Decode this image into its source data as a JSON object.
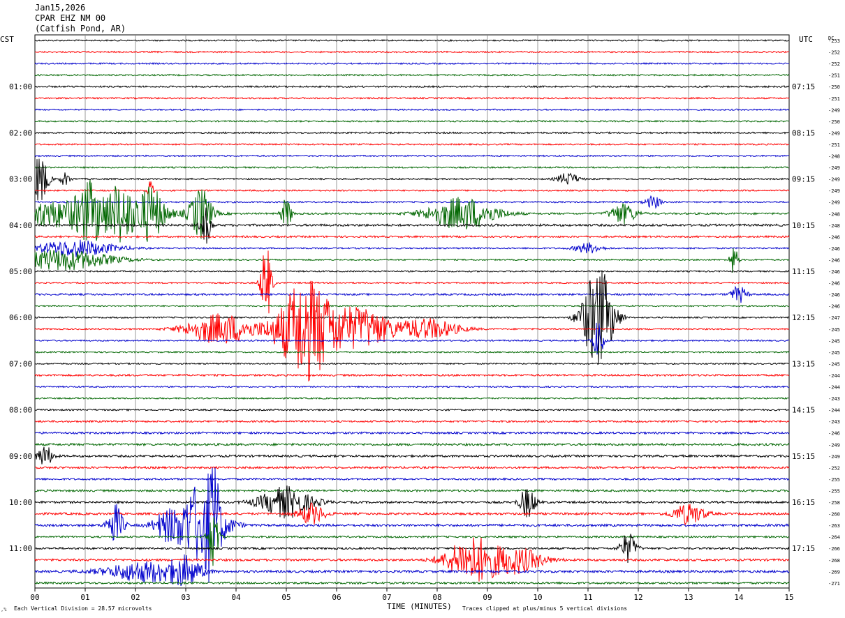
{
  "header": {
    "date": "Jan15,2026",
    "station": "CPAR EHZ NM 00",
    "location": "(Catfish Pond, AR)"
  },
  "axes": {
    "left_label": "CST",
    "right_label": "UTC",
    "dc_label": "DC",
    "xlabel": "TIME (MINUTES)"
  },
  "footer": {
    "scale_note": "Each Vertical Division =   28.57 microvolts",
    "clip_note": "Traces clipped at plus/minus 5 vertical divisions"
  },
  "colors": {
    "trace_cycle": [
      "#000000",
      "#ff0000",
      "#0000cc",
      "#006600"
    ],
    "grid": "#808080"
  },
  "chart_data": {
    "type": "line",
    "title": "",
    "xlabel": "TIME (MINUTES)",
    "xlim": [
      0,
      15
    ],
    "x_ticks": [
      "00",
      "01",
      "02",
      "03",
      "04",
      "05",
      "06",
      "07",
      "08",
      "09",
      "10",
      "11",
      "12",
      "13",
      "14",
      "15"
    ],
    "rows_per_hour": 4,
    "row_count": 48,
    "cst_hour_labels": [
      "01:00",
      "02:00",
      "03:00",
      "04:00",
      "05:00",
      "06:00",
      "07:00",
      "08:00",
      "09:00",
      "10:00",
      "11:00"
    ],
    "utc_hour_labels": [
      "07:15",
      "08:15",
      "09:15",
      "10:15",
      "11:15",
      "12:15",
      "13:15",
      "14:15",
      "15:15",
      "16:15",
      "17:15"
    ],
    "dc_offsets": [
      "-253",
      "-252",
      "-252",
      "-251",
      "-250",
      "-251",
      "-249",
      "-250",
      "-249",
      "-251",
      "-248",
      "-249",
      "-249",
      "-249",
      "-249",
      "-248",
      "-248",
      "-246",
      "-246",
      "-246",
      "-246",
      "-246",
      "-246",
      "-246",
      "-247",
      "-245",
      "-245",
      "-245",
      "-245",
      "-244",
      "-244",
      "-243",
      "-244",
      "-243",
      "-246",
      "-249",
      "-249",
      "-252",
      "-255",
      "-255",
      "-258",
      "-260",
      "-263",
      "-264",
      "-266",
      "-268",
      "-269",
      "-271"
    ],
    "noise_level": [
      0.8,
      0.8,
      0.8,
      0.8,
      0.9,
      0.8,
      0.8,
      0.8,
      0.9,
      0.8,
      0.8,
      0.8,
      0.8,
      0.8,
      0.8,
      1.0,
      1.2,
      1.0,
      0.8,
      0.8,
      0.8,
      0.8,
      1.0,
      0.8,
      0.8,
      0.8,
      0.8,
      0.8,
      0.8,
      1.0,
      0.8,
      0.8,
      0.9,
      1.0,
      1.1,
      1.2,
      1.2,
      1.1,
      1.0,
      1.1,
      1.2,
      1.2,
      1.3,
      1.0,
      1.1,
      1.2,
      1.3,
      1.1
    ],
    "events": [
      {
        "row": 12,
        "minute": 0.1,
        "amplitude": 2.5,
        "duration": 0.3
      },
      {
        "row": 12,
        "minute": 0.6,
        "amplitude": 0.6,
        "duration": 0.2
      },
      {
        "row": 12,
        "minute": 10.6,
        "amplitude": 0.6,
        "duration": 0.4
      },
      {
        "row": 13,
        "minute": 2.3,
        "amplitude": 1.5,
        "duration": 0.1
      },
      {
        "row": 14,
        "minute": 12.3,
        "amplitude": 0.6,
        "duration": 0.3
      },
      {
        "row": 15,
        "minute": 0.5,
        "amplitude": 1.3,
        "duration": 3.5
      },
      {
        "row": 15,
        "minute": 1.1,
        "amplitude": 2.0,
        "duration": 0.5
      },
      {
        "row": 15,
        "minute": 1.7,
        "amplitude": 2.2,
        "duration": 0.5
      },
      {
        "row": 15,
        "minute": 2.3,
        "amplitude": 2.4,
        "duration": 0.5
      },
      {
        "row": 15,
        "minute": 3.3,
        "amplitude": 2.5,
        "duration": 0.4
      },
      {
        "row": 15,
        "minute": 5.0,
        "amplitude": 1.5,
        "duration": 0.2
      },
      {
        "row": 15,
        "minute": 8.5,
        "amplitude": 1.6,
        "duration": 1.3
      },
      {
        "row": 15,
        "minute": 11.7,
        "amplitude": 1.0,
        "duration": 0.5
      },
      {
        "row": 16,
        "minute": 3.4,
        "amplitude": 1.8,
        "duration": 0.2
      },
      {
        "row": 18,
        "minute": 0.8,
        "amplitude": 0.8,
        "duration": 1.5
      },
      {
        "row": 18,
        "minute": 11.0,
        "amplitude": 0.5,
        "duration": 0.5
      },
      {
        "row": 19,
        "minute": 0.5,
        "amplitude": 1.0,
        "duration": 2.0
      },
      {
        "row": 19,
        "minute": 13.9,
        "amplitude": 1.5,
        "duration": 0.15
      },
      {
        "row": 21,
        "minute": 4.6,
        "amplitude": 4.0,
        "duration": 0.2
      },
      {
        "row": 22,
        "minute": 14.0,
        "amplitude": 0.8,
        "duration": 0.3
      },
      {
        "row": 24,
        "minute": 11.2,
        "amplitude": 5.0,
        "duration": 0.6
      },
      {
        "row": 25,
        "minute": 3.7,
        "amplitude": 1.5,
        "duration": 1.3
      },
      {
        "row": 25,
        "minute": 5.4,
        "amplitude": 5.0,
        "duration": 1.1
      },
      {
        "row": 25,
        "minute": 6.5,
        "amplitude": 2.0,
        "duration": 1.1
      },
      {
        "row": 25,
        "minute": 7.8,
        "amplitude": 1.0,
        "duration": 1.2
      },
      {
        "row": 26,
        "minute": 11.2,
        "amplitude": 2.0,
        "duration": 0.2
      },
      {
        "row": 36,
        "minute": 0.2,
        "amplitude": 1.0,
        "duration": 0.3
      },
      {
        "row": 40,
        "minute": 5.0,
        "amplitude": 1.5,
        "duration": 1.0
      },
      {
        "row": 40,
        "minute": 9.8,
        "amplitude": 1.5,
        "duration": 0.3
      },
      {
        "row": 41,
        "minute": 5.5,
        "amplitude": 1.0,
        "duration": 0.5
      },
      {
        "row": 41,
        "minute": 13.0,
        "amplitude": 1.0,
        "duration": 0.6
      },
      {
        "row": 42,
        "minute": 1.6,
        "amplitude": 2.0,
        "duration": 0.3
      },
      {
        "row": 42,
        "minute": 2.6,
        "amplitude": 1.2,
        "duration": 0.5
      },
      {
        "row": 42,
        "minute": 3.3,
        "amplitude": 4.0,
        "duration": 0.9
      },
      {
        "row": 42,
        "minute": 3.55,
        "amplitude": 5.0,
        "duration": 0.2
      },
      {
        "row": 43,
        "minute": 3.55,
        "amplitude": 3.0,
        "duration": 0.2
      },
      {
        "row": 44,
        "minute": 11.8,
        "amplitude": 1.5,
        "duration": 0.3
      },
      {
        "row": 45,
        "minute": 8.7,
        "amplitude": 2.2,
        "duration": 1.0
      },
      {
        "row": 45,
        "minute": 9.6,
        "amplitude": 1.2,
        "duration": 1.0
      },
      {
        "row": 46,
        "minute": 2.2,
        "amplitude": 1.0,
        "duration": 1.5
      },
      {
        "row": 46,
        "minute": 3.0,
        "amplitude": 1.2,
        "duration": 0.6
      }
    ]
  }
}
